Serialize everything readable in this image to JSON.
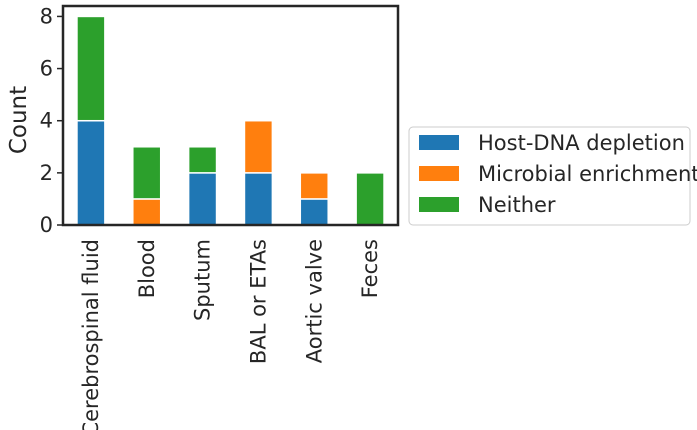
{
  "chart_data": {
    "type": "bar",
    "stacked": true,
    "categories": [
      "Cerebrospinal fluid",
      "Blood",
      "Sputum",
      "BAL or ETAs",
      "Aortic valve",
      "Feces"
    ],
    "series": [
      {
        "name": "Host-DNA depletion",
        "values": [
          4,
          0,
          2,
          2,
          1,
          0
        ],
        "color": "#1f77b4"
      },
      {
        "name": "Microbial enrichment",
        "values": [
          0,
          1,
          0,
          2,
          1,
          0
        ],
        "color": "#ff7f0e"
      },
      {
        "name": "Neither",
        "values": [
          4,
          2,
          1,
          0,
          0,
          2
        ],
        "color": "#2ca02c"
      }
    ],
    "title": "",
    "xlabel": "",
    "ylabel": "Count",
    "ylim": [
      0,
      8.4
    ],
    "yticks": [
      0,
      2,
      4,
      6,
      8
    ],
    "grid": false,
    "legend_position": "right"
  }
}
